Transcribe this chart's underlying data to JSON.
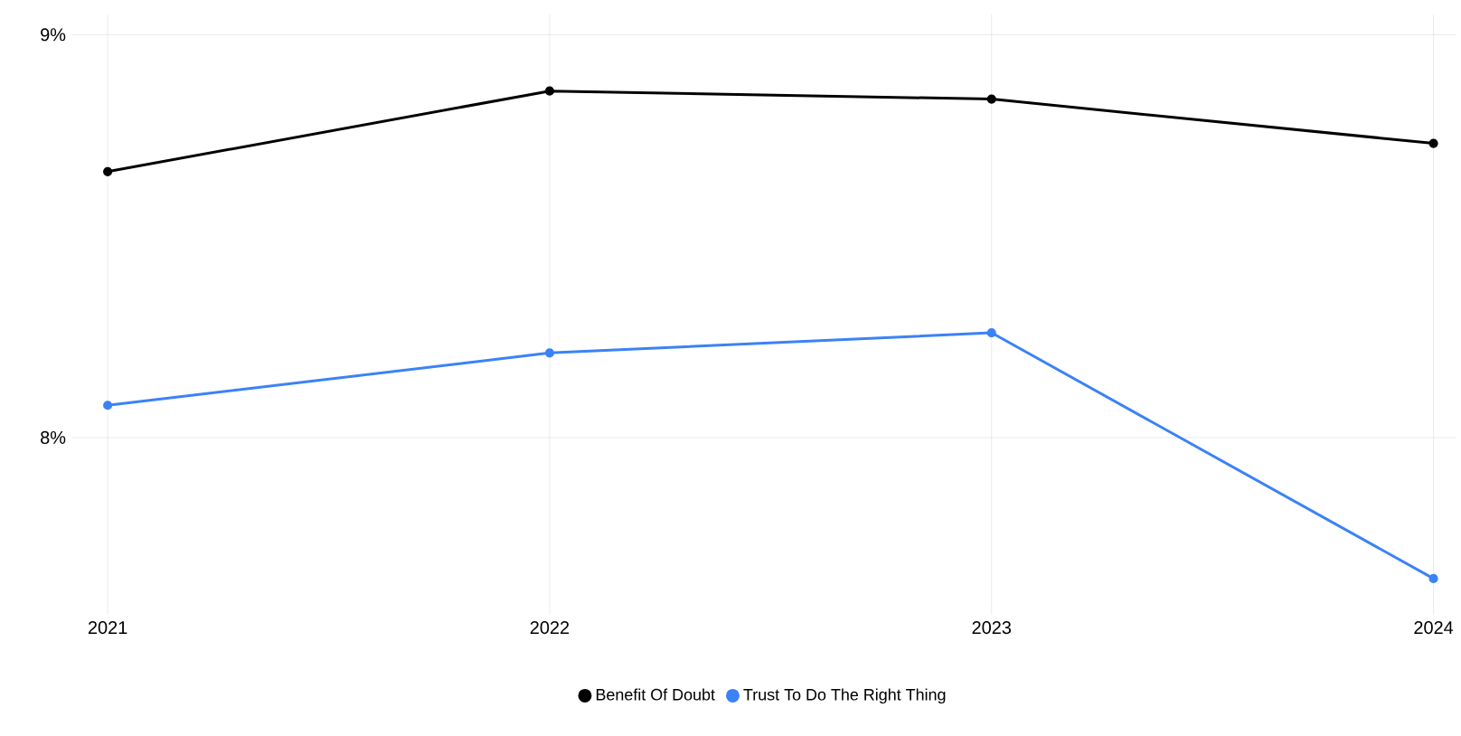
{
  "chart_data": {
    "type": "line",
    "x": [
      2021,
      2022,
      2023,
      2024
    ],
    "xlim": [
      2020.92,
      2024.05
    ],
    "xticks": [
      2021,
      2022,
      2023,
      2024
    ],
    "ylim": [
      7.56,
      9.05
    ],
    "yticks": [
      {
        "value": 8,
        "label": "8%"
      },
      {
        "value": 9,
        "label": "9%"
      }
    ],
    "grid": true,
    "legend": "bottom",
    "marker": "circle",
    "line_style": "solid",
    "series": [
      {
        "name": "Benefit Of Doubt",
        "color": "#000000",
        "values": [
          8.66,
          8.86,
          8.84,
          8.73
        ]
      },
      {
        "name": "Trust To Do The Right Thing",
        "color": "#3b82f6",
        "values": [
          8.08,
          8.21,
          8.26,
          7.65
        ]
      }
    ]
  }
}
